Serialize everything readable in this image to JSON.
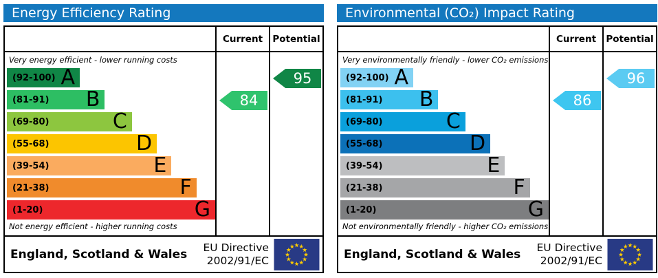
{
  "flag": {
    "navy": "#283a85",
    "gold": "#ffcc00"
  },
  "panels": [
    {
      "title": "Energy Efficiency Rating",
      "header_color": "#1478be",
      "columns": {
        "current": "Current",
        "potential": "Potential"
      },
      "top_note": "Very energy efficient - lower running costs",
      "bottom_note": "Not energy efficient - higher running costs",
      "bands": [
        {
          "letter": "A",
          "range": "(92-100)",
          "color": "#108646",
          "width_pct": 35
        },
        {
          "letter": "B",
          "range": "(81-91)",
          "color": "#2dbe63",
          "width_pct": 47
        },
        {
          "letter": "C",
          "range": "(69-80)",
          "color": "#8dc63f",
          "width_pct": 60
        },
        {
          "letter": "D",
          "range": "(55-68)",
          "color": "#fcc500",
          "width_pct": 72
        },
        {
          "letter": "E",
          "range": "(39-54)",
          "color": "#faab5f",
          "width_pct": 79
        },
        {
          "letter": "F",
          "range": "(21-38)",
          "color": "#f08b2c",
          "width_pct": 91
        },
        {
          "letter": "G",
          "range": "(1-20)",
          "color": "#ed272c",
          "width_pct": 100
        }
      ],
      "current": {
        "value": 84,
        "band": "B",
        "color": "#2fc36d"
      },
      "potential": {
        "value": 95,
        "band": "A",
        "color": "#108646"
      },
      "footer": {
        "region": "England, Scotland & Wales",
        "directive_line1": "EU Directive",
        "directive_line2": "2002/91/EC"
      }
    },
    {
      "title": "Environmental (CO₂) Impact Rating",
      "header_color": "#1478be",
      "columns": {
        "current": "Current",
        "potential": "Potential"
      },
      "top_note": "Very environmentally friendly - lower CO₂ emissions",
      "bottom_note": "Not environmentally friendly - higher CO₂ emissions",
      "bands": [
        {
          "letter": "A",
          "range": "(92-100)",
          "color": "#82d2f4",
          "width_pct": 35
        },
        {
          "letter": "B",
          "range": "(81-91)",
          "color": "#3cc0ee",
          "width_pct": 47
        },
        {
          "letter": "C",
          "range": "(69-80)",
          "color": "#0aa0dc",
          "width_pct": 60
        },
        {
          "letter": "D",
          "range": "(55-68)",
          "color": "#0c71b8",
          "width_pct": 72
        },
        {
          "letter": "E",
          "range": "(39-54)",
          "color": "#bdbec0",
          "width_pct": 79
        },
        {
          "letter": "F",
          "range": "(21-38)",
          "color": "#a5a6a8",
          "width_pct": 91
        },
        {
          "letter": "G",
          "range": "(1-20)",
          "color": "#7d7e80",
          "width_pct": 100
        }
      ],
      "current": {
        "value": 86,
        "band": "B",
        "color": "#3ec6f0"
      },
      "potential": {
        "value": 96,
        "band": "A",
        "color": "#5bcbf2"
      },
      "footer": {
        "region": "England, Scotland & Wales",
        "directive_line1": "EU Directive",
        "directive_line2": "2002/91/EC"
      }
    }
  ],
  "chart_data": [
    {
      "type": "bar",
      "title": "Energy Efficiency Rating",
      "categories": [
        "A (92-100)",
        "B (81-91)",
        "C (69-80)",
        "D (55-68)",
        "E (39-54)",
        "F (21-38)",
        "G (1-20)"
      ],
      "values": [
        35,
        47,
        60,
        72,
        79,
        91,
        100
      ],
      "series": [
        {
          "name": "Current",
          "value": 84,
          "band": "B"
        },
        {
          "name": "Potential",
          "value": 95,
          "band": "A"
        }
      ],
      "xlabel": "",
      "ylabel": "",
      "value_range": [
        1,
        100
      ],
      "annotations": [
        "Very energy efficient - lower running costs",
        "Not energy efficient - higher running costs",
        "England, Scotland & Wales",
        "EU Directive 2002/91/EC"
      ],
      "legend_position": "none",
      "grid": false
    },
    {
      "type": "bar",
      "title": "Environmental (CO₂) Impact Rating",
      "categories": [
        "A (92-100)",
        "B (81-91)",
        "C (69-80)",
        "D (55-68)",
        "E (39-54)",
        "F (21-38)",
        "G (1-20)"
      ],
      "values": [
        35,
        47,
        60,
        72,
        79,
        91,
        100
      ],
      "series": [
        {
          "name": "Current",
          "value": 86,
          "band": "B"
        },
        {
          "name": "Potential",
          "value": 96,
          "band": "A"
        }
      ],
      "xlabel": "",
      "ylabel": "",
      "value_range": [
        1,
        100
      ],
      "annotations": [
        "Very environmentally friendly - lower CO₂ emissions",
        "Not environmentally friendly - higher CO₂ emissions",
        "England, Scotland & Wales",
        "EU Directive 2002/91/EC"
      ],
      "legend_position": "none",
      "grid": false
    }
  ]
}
